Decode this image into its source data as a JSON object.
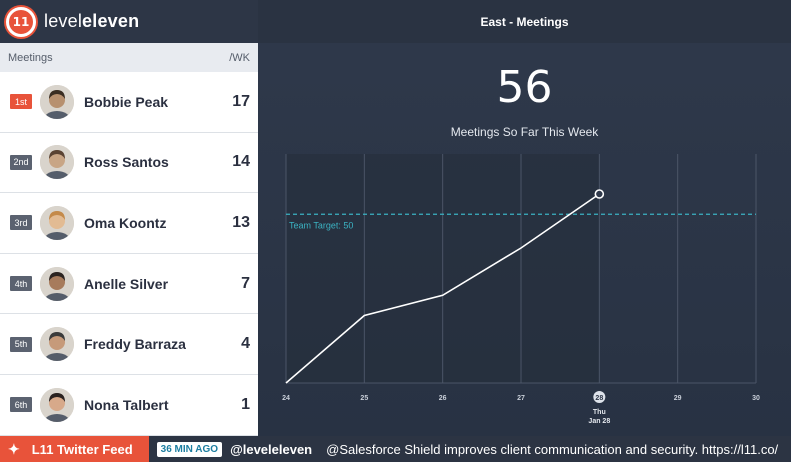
{
  "brand": {
    "logo_text": "11",
    "name_light": "level",
    "name_bold": "eleven"
  },
  "leaderboard": {
    "header_left": "Meetings",
    "header_right": "/WK",
    "rows": [
      {
        "rank": "1st",
        "name": "Bobbie Peak",
        "value": "17"
      },
      {
        "rank": "2nd",
        "name": "Ross Santos",
        "value": "14"
      },
      {
        "rank": "3rd",
        "name": "Oma Koontz",
        "value": "13"
      },
      {
        "rank": "4th",
        "name": "Anelle Silver",
        "value": "7"
      },
      {
        "rank": "5th",
        "name": "Freddy Barraza",
        "value": "4"
      },
      {
        "rank": "6th",
        "name": "Nona Talbert",
        "value": "1"
      }
    ]
  },
  "main": {
    "title": "East - Meetings",
    "big_number": "56",
    "subtitle": "Meetings So Far This Week"
  },
  "chart_data": {
    "type": "line",
    "x": [
      24,
      25,
      26,
      27,
      28
    ],
    "tick_labels": [
      "24",
      "25",
      "26",
      "27",
      "28",
      "29",
      "30"
    ],
    "xlim": [
      24,
      30
    ],
    "ylim": [
      0,
      56
    ],
    "values": [
      0,
      20,
      26,
      40,
      56
    ],
    "target": {
      "label": "Team Target: 50",
      "value": 50
    },
    "current": {
      "label_day": "Thu",
      "label_date": "Jan 28",
      "x": 28
    },
    "colors": {
      "line": "#ffffff",
      "target": "#3bb3c3",
      "grid": "#4b5567",
      "highlight": "#252d3b"
    }
  },
  "ticker": {
    "label": "L11 Twitter Feed",
    "time_ago": "36 MIN AGO",
    "handle": "@leveleleven",
    "message": "@Salesforce Shield improves client communication and security. https://l11.co/"
  }
}
